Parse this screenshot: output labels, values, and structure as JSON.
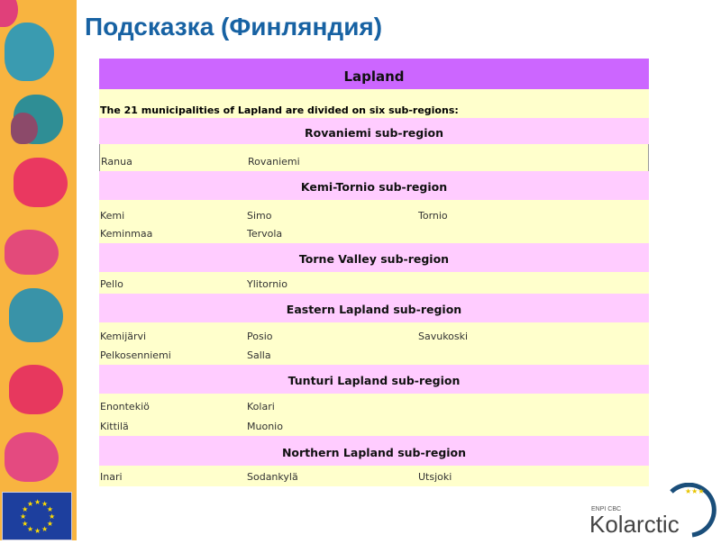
{
  "title": "Подсказка (Финляндия)",
  "table": {
    "header": "Lapland",
    "intro": "The 21 municipalities  of Lapland  are divided on six sub-regions:",
    "subregions": [
      {
        "name": "Rovaniemi sub-region",
        "rows": [
          [
            "Ranua",
            "Rovaniemi",
            ""
          ]
        ]
      },
      {
        "name": "Kemi-Tornio sub-region",
        "rows": [
          [
            "Kemi",
            "Simo",
            "Tornio"
          ],
          [
            "Keminmaa",
            "Tervola",
            ""
          ]
        ]
      },
      {
        "name": "Torne Valley sub-region",
        "rows": [
          [
            "Pello",
            "Ylitornio",
            ""
          ]
        ]
      },
      {
        "name": "Eastern Lapland sub-region",
        "rows": [
          [
            "Kemijärvi",
            "Posio",
            "Savukoski"
          ],
          [
            "Pelkosenniemi",
            "Salla",
            ""
          ]
        ]
      },
      {
        "name": "Tunturi Lapland sub-region",
        "rows": [
          [
            "Enontekiö",
            "Kolari",
            ""
          ],
          [
            "Kittilä",
            "Muonio",
            ""
          ]
        ]
      },
      {
        "name": "Northern Lapland sub-region",
        "rows": [
          [
            "Inari",
            "Sodankylä",
            "Utsjoki"
          ]
        ]
      }
    ]
  },
  "logos": {
    "eu": "EU flag",
    "kolarctic_small": "ENPI CBC",
    "kolarctic": "Kolarctic"
  },
  "colors": {
    "header": "#cc66ff",
    "subregion": "#ffccff",
    "row": "#ffffcc",
    "title": "#1762a3"
  }
}
